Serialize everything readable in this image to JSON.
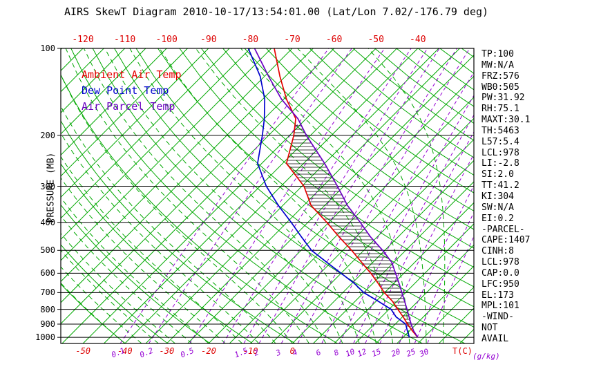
{
  "title": "AIRS SkewT Diagram 2010-10-17/13:54:01.00 (Lat/Lon 7.02/-176.79 deg)",
  "colors": {
    "axis_red": "#dd0000",
    "grid_green": "#00a800",
    "mixing_purple": "#9400d3",
    "pressure_black": "#000000",
    "hatch_black": "#000000",
    "frame_black": "#000000"
  },
  "legend": {
    "items": [
      {
        "label": "Ambient Air Temp",
        "color": "#e60000"
      },
      {
        "label": "Dew Point Temp",
        "color": "#0000cd"
      },
      {
        "label": "Air Parcel Temp",
        "color": "#6a00c2"
      }
    ]
  },
  "axes": {
    "pressure_label": "PRESSURE (MB)",
    "pressure_ticks": [
      100,
      200,
      300,
      400,
      500,
      600,
      700,
      800,
      900,
      1000
    ],
    "top_temp_labels": [
      -120,
      -110,
      -100,
      -90,
      -80,
      -70,
      -60,
      -50,
      -40
    ],
    "bottom_temp_labels": [
      -50,
      -40,
      -30,
      -20,
      -10,
      0
    ],
    "temp_unit_label": "T(C)",
    "mixing_unit_label": "(g/kg)",
    "mixing_ratio_labels": [
      0.1,
      0.2,
      0.5,
      1.5,
      2,
      3,
      4,
      6,
      8,
      10,
      12,
      15,
      20,
      25,
      30
    ]
  },
  "stats_panel": {
    "lines": [
      "TP:100",
      "MW:N/A",
      "FRZ:576",
      "WB0:505",
      "PW:31.92",
      "RH:75.1",
      "MAXT:30.1",
      "TH:5463",
      "L57:5.4",
      "LCL:978",
      "LI:-2.8",
      "SI:2.0",
      "TT:41.2",
      "KI:304",
      "SW:N/A",
      "EI:0.2",
      "-PARCEL-",
      "CAPE:1407",
      "CINH:8",
      "LCL:978",
      "CAP:0.0",
      "LFC:950",
      "EL:173",
      "MPL:101",
      "-WIND-",
      "NOT",
      "AVAIL"
    ]
  },
  "chart_data": {
    "type": "line",
    "title": "AIRS SkewT Diagram 2010-10-17/13:54:01.00 (Lat/Lon 7.02/-176.79 deg)",
    "xlabel": "T(C)",
    "ylabel": "PRESSURE (MB)",
    "y_axis": {
      "range_mb": [
        100,
        1050
      ],
      "scale": "log",
      "ticks": [
        100,
        200,
        300,
        400,
        500,
        600,
        700,
        800,
        900,
        1000
      ]
    },
    "x_axis": {
      "temp_labels_top_c": [
        -120,
        -110,
        -100,
        -90,
        -80,
        -70,
        -60,
        -50,
        -40
      ],
      "temp_labels_bottom_c": [
        -50,
        -40,
        -30,
        -20,
        -10,
        0
      ]
    },
    "pressures_mb": [
      1000,
      950,
      900,
      850,
      800,
      750,
      700,
      650,
      600,
      550,
      500,
      450,
      400,
      350,
      300,
      250,
      200,
      175,
      150,
      125,
      100
    ],
    "series": [
      {
        "name": "Ambient Air Temp",
        "color": "#e60000",
        "values_c": [
          28.5,
          25.7,
          22.9,
          20.2,
          17.1,
          13.9,
          9.9,
          6.2,
          2.1,
          -2.7,
          -7.9,
          -14.0,
          -20.5,
          -28.2,
          -34.5,
          -44.1,
          -49.0,
          -52.5,
          -59.3,
          -66.3,
          -74.3
        ]
      },
      {
        "name": "Dew Point Temp",
        "color": "#0000cd",
        "values_c": [
          26.5,
          24.5,
          22.5,
          18.5,
          15.5,
          10.5,
          5.0,
          0.5,
          -5.0,
          -11.0,
          -17.5,
          -23.0,
          -29.0,
          -36.0,
          -43.5,
          -51.0,
          -56.5,
          -60.0,
          -64.5,
          -71.0,
          -80.5
        ]
      },
      {
        "name": "Air Parcel Temp",
        "color": "#6a00c2",
        "values_c": [
          28.5,
          26.0,
          23.8,
          21.6,
          19.3,
          16.8,
          14.1,
          11.2,
          8.0,
          4.5,
          -0.5,
          -6.5,
          -12.5,
          -19.5,
          -26.5,
          -35.0,
          -46.0,
          -52.0,
          -60.5,
          -69.0,
          -79.0
        ]
      }
    ],
    "grid": {
      "isotherm_step_c": 5,
      "isotherm_color": "#00a800",
      "dry_adiabat_theta_k": {
        "min": 230,
        "max": 470,
        "step": 10
      },
      "moist_adiabat_start_c": {
        "min": -40,
        "max": 36,
        "step": 4
      },
      "mixing_ratio_lines_gkg": [
        0.1,
        0.2,
        0.5,
        1,
        1.5,
        2,
        3,
        4,
        6,
        8,
        10,
        12,
        15,
        20,
        25,
        30
      ],
      "mixing_color": "#9400d3"
    },
    "hatch": {
      "between": [
        "Air Parcel Temp",
        "Ambient Air Temp"
      ],
      "meaning": "CAPE positive area",
      "region_pressure_mb": [
        945,
        175
      ]
    },
    "legend_position": "upper-left",
    "grid_on": true
  }
}
